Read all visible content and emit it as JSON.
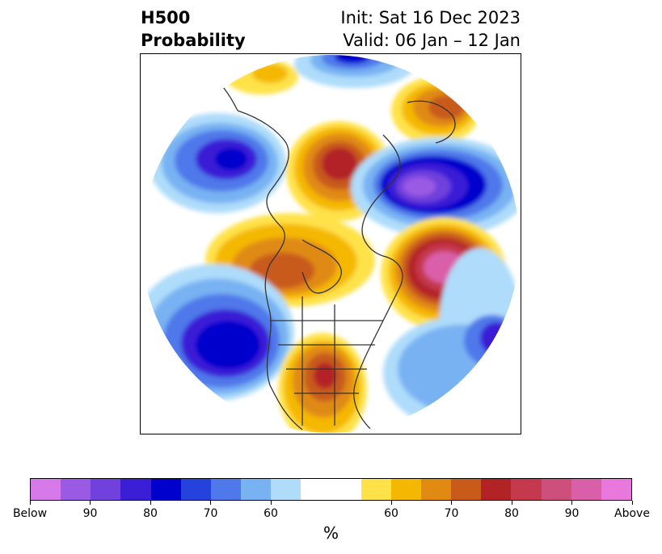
{
  "title": {
    "line1": "H500",
    "line2": "Probability",
    "init": "Init: Sat 16 Dec 2023",
    "valid": "Valid: 06 Jan – 12 Jan"
  },
  "colorbar": {
    "colors": [
      "#d57ae8",
      "#9b5ae3",
      "#7041dc",
      "#3b1fd6",
      "#0000cd",
      "#2543dc",
      "#4f78ea",
      "#78b2f3",
      "#aedcfa",
      "#ffffff",
      "#ffe24a",
      "#f5b800",
      "#e08a12",
      "#c85a1a",
      "#b22326",
      "#c4394c",
      "#cc4f7c",
      "#da5fa9",
      "#e878dc"
    ],
    "tick_labels": [
      "Below",
      "90",
      "80",
      "70",
      "60",
      "60",
      "70",
      "80",
      "90",
      "Above"
    ],
    "units": "%"
  },
  "map_legend_colors": {
    "below_light": "#aedcfa",
    "below_mid": "#78b2f3",
    "below_mid2": "#4f78ea",
    "below_strong": "#0000cd",
    "below_deep": "#3b1fd6",
    "below_max": "#9b5ae3",
    "above_light": "#ffe24a",
    "above_mid": "#f5b800",
    "above_mid2": "#e08a12",
    "above_strong": "#c85a1a",
    "above_deep": "#b22326",
    "above_max": "#da5fa9",
    "coast": "#333333"
  }
}
